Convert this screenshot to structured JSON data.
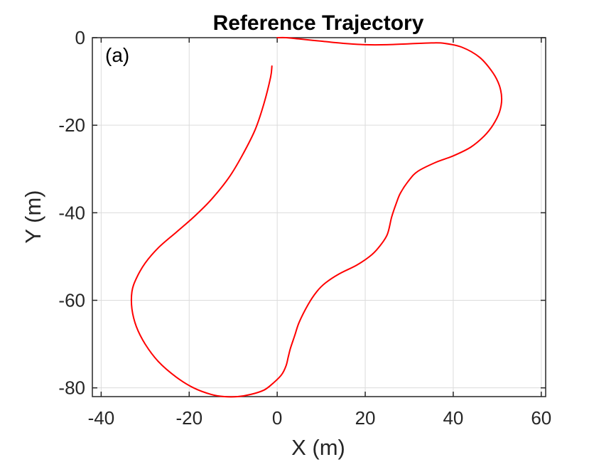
{
  "chart_data": {
    "type": "line",
    "title": "Reference Trajectory",
    "panel_label": "(a)",
    "xlabel": "X (m)",
    "ylabel": "Y (m)",
    "xlim": [
      -42,
      61
    ],
    "ylim": [
      -82,
      0
    ],
    "xticks": [
      -40,
      -20,
      0,
      20,
      40,
      60
    ],
    "yticks": [
      0,
      -20,
      -40,
      -60,
      -80
    ],
    "xtick_labels": [
      "-40",
      "-20",
      "0",
      "20",
      "40",
      "60"
    ],
    "ytick_labels": [
      "0",
      "-20",
      "-40",
      "-60",
      "-80"
    ],
    "grid": true,
    "line_color": "#ff0000",
    "series": [
      {
        "x": [
          0,
          2,
          5,
          10,
          15,
          20,
          25,
          30,
          35,
          38,
          42,
          46,
          49,
          50.5,
          51,
          50.5,
          49,
          47,
          44,
          40,
          36,
          32,
          30,
          28,
          27,
          26,
          25,
          23,
          21,
          18,
          14,
          11,
          9,
          7,
          5,
          4,
          3,
          2.5,
          2,
          1,
          -1,
          -3,
          -6,
          -9,
          -12,
          -15,
          -19,
          -23,
          -27,
          -30,
          -32,
          -33,
          -33,
          -32,
          -30,
          -27,
          -23,
          -19,
          -15,
          -11,
          -8,
          -5,
          -3,
          -1.5,
          -1.2
        ],
        "y": [
          0,
          0,
          -0.3,
          -0.8,
          -1.3,
          -1.6,
          -1.6,
          -1.4,
          -1.2,
          -1.3,
          -2.2,
          -4.5,
          -8,
          -11,
          -14,
          -17,
          -20,
          -22.5,
          -25,
          -27,
          -28.5,
          -30.5,
          -32.5,
          -35.5,
          -38,
          -41,
          -45,
          -48,
          -50,
          -52,
          -54,
          -56,
          -58,
          -61,
          -65,
          -68,
          -71,
          -73,
          -75,
          -77,
          -79,
          -80.5,
          -81.5,
          -82,
          -82,
          -81.5,
          -80,
          -77.5,
          -74,
          -70,
          -66,
          -62,
          -58,
          -55,
          -51.5,
          -48,
          -44.5,
          -41,
          -37,
          -32,
          -27,
          -21,
          -15,
          -9,
          -6.5
        ]
      }
    ]
  }
}
